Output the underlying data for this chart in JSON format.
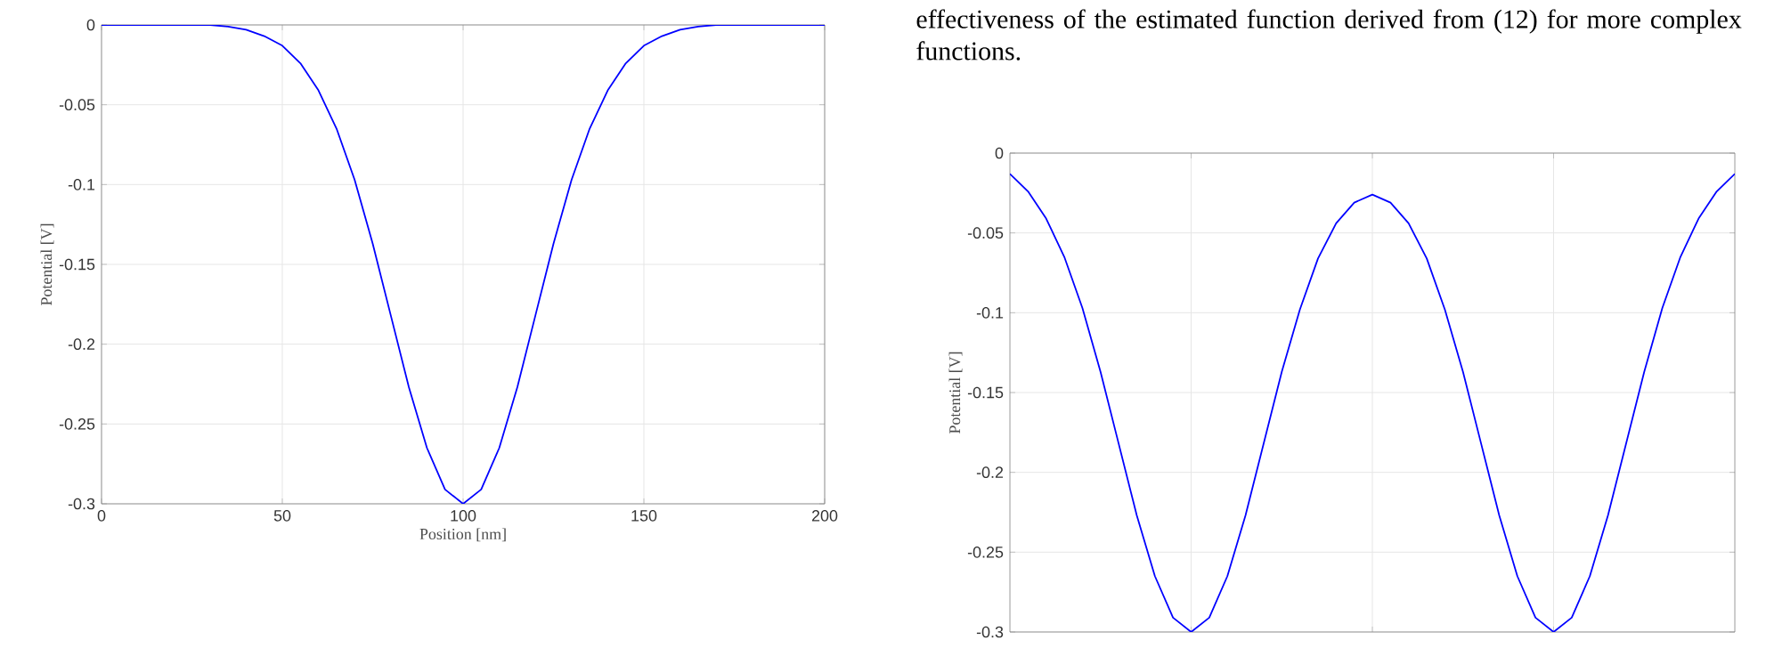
{
  "chart_data": [
    {
      "type": "line",
      "xlabel": "Position [nm]",
      "ylabel": "Potential [V]",
      "x": [
        0,
        5,
        10,
        15,
        20,
        25,
        30,
        35,
        40,
        45,
        50,
        55,
        60,
        65,
        70,
        75,
        80,
        85,
        90,
        95,
        100,
        105,
        110,
        115,
        120,
        125,
        130,
        135,
        140,
        145,
        150,
        155,
        160,
        165,
        170,
        175,
        180,
        185,
        190,
        195,
        200
      ],
      "series": [
        {
          "color": "#0000ff",
          "values": [
            0,
            0,
            0,
            0,
            0,
            0,
            0,
            -0.001,
            -0.003,
            -0.007,
            -0.013,
            -0.024,
            -0.041,
            -0.065,
            -0.097,
            -0.137,
            -0.182,
            -0.227,
            -0.265,
            -0.291,
            -0.3,
            -0.291,
            -0.265,
            -0.227,
            -0.182,
            -0.137,
            -0.097,
            -0.065,
            -0.041,
            -0.024,
            -0.013,
            -0.007,
            -0.003,
            -0.001,
            0,
            0,
            0,
            0,
            0,
            0,
            0
          ]
        }
      ],
      "xlim": [
        0,
        200
      ],
      "ylim": [
        -0.3,
        0
      ],
      "xticks": [
        0,
        50,
        100,
        150,
        200
      ],
      "yticks": [
        -0.3,
        -0.25,
        -0.2,
        -0.15,
        -0.1,
        -0.05,
        0
      ],
      "grid": true,
      "line_style": "solid",
      "marker": "none"
    },
    {
      "type": "line",
      "ylabel": "Potential [V]",
      "categories": [
        null,
        null,
        null,
        null,
        null,
        null,
        null,
        null,
        null,
        null,
        null,
        null,
        null,
        null,
        null,
        null,
        null,
        null,
        null,
        null,
        null,
        null,
        null,
        null,
        null,
        null,
        null,
        null,
        null,
        null,
        null,
        null,
        null,
        null,
        null,
        null,
        null,
        null,
        null,
        null,
        null
      ],
      "series": [
        {
          "color": "#0000ff",
          "values": [
            -0.013,
            -0.024,
            -0.041,
            -0.065,
            -0.097,
            -0.137,
            -0.182,
            -0.227,
            -0.265,
            -0.291,
            -0.3,
            -0.291,
            -0.265,
            -0.227,
            -0.182,
            -0.137,
            -0.098,
            -0.066,
            -0.044,
            -0.031,
            -0.026,
            -0.031,
            -0.044,
            -0.066,
            -0.098,
            -0.137,
            -0.182,
            -0.227,
            -0.265,
            -0.291,
            -0.3,
            -0.291,
            -0.265,
            -0.227,
            -0.182,
            -0.137,
            -0.097,
            -0.065,
            -0.041,
            -0.024,
            -0.013
          ]
        }
      ],
      "ylim": [
        -0.3,
        0
      ],
      "yticks": [
        -0.3,
        -0.25,
        -0.2,
        -0.15,
        -0.1,
        -0.05,
        0
      ],
      "grid": true,
      "tick_labels": "y",
      "line_style": "solid",
      "marker": "none",
      "annotations": [
        "effectiveness of the estimated function derived from (12) for more complex functions."
      ]
    }
  ]
}
